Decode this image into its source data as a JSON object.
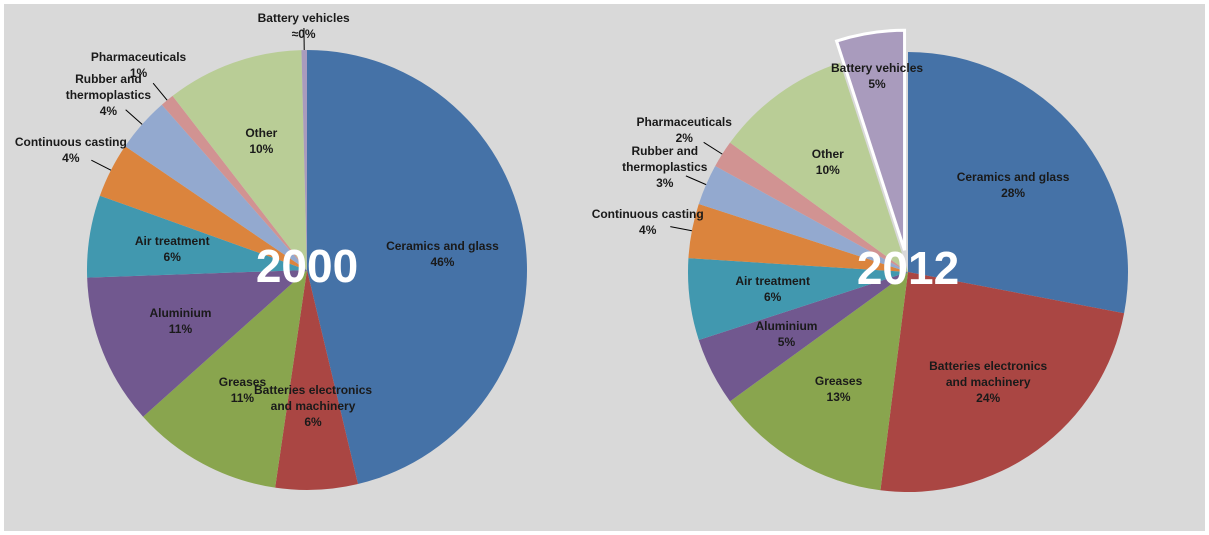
{
  "chart_data": [
    {
      "type": "pie",
      "title": "2000",
      "categories": [
        "Ceramics and glass",
        "Batteries electronics and machinery",
        "Greases",
        "Aluminium",
        "Air treatment",
        "Continuous casting",
        "Rubber and thermoplastics",
        "Pharmaceuticals",
        "Other",
        "Battery vehicles"
      ],
      "values": [
        46,
        6,
        11,
        11,
        6,
        4,
        4,
        1,
        10,
        0.4
      ],
      "value_labels": [
        "46%",
        "6%",
        "11%",
        "11%",
        "6%",
        "4%",
        "4%",
        "1%",
        "10%",
        "≈0%"
      ],
      "colors": [
        "#4572a7",
        "#aa4643",
        "#89a54e",
        "#71588f",
        "#4198af",
        "#db843d",
        "#93a9cf",
        "#d19392",
        "#b9cd96",
        "#a99bbd"
      ]
    },
    {
      "type": "pie",
      "title": "2012",
      "categories": [
        "Ceramics and glass",
        "Batteries electronics and machinery",
        "Greases",
        "Aluminium",
        "Air treatment",
        "Continuous casting",
        "Rubber and thermoplastics",
        "Pharmaceuticals",
        "Other",
        "Battery vehicles"
      ],
      "values": [
        28,
        24,
        13,
        5,
        6,
        4,
        3,
        2,
        10,
        5
      ],
      "value_labels": [
        "28%",
        "24%",
        "13%",
        "5%",
        "6%",
        "4%",
        "3%",
        "2%",
        "10%",
        "5%"
      ],
      "colors": [
        "#4572a7",
        "#aa4643",
        "#89a54e",
        "#71588f",
        "#4198af",
        "#db843d",
        "#93a9cf",
        "#d19392",
        "#b9cd96",
        "#a99bbd"
      ],
      "explode_index": 9
    }
  ]
}
